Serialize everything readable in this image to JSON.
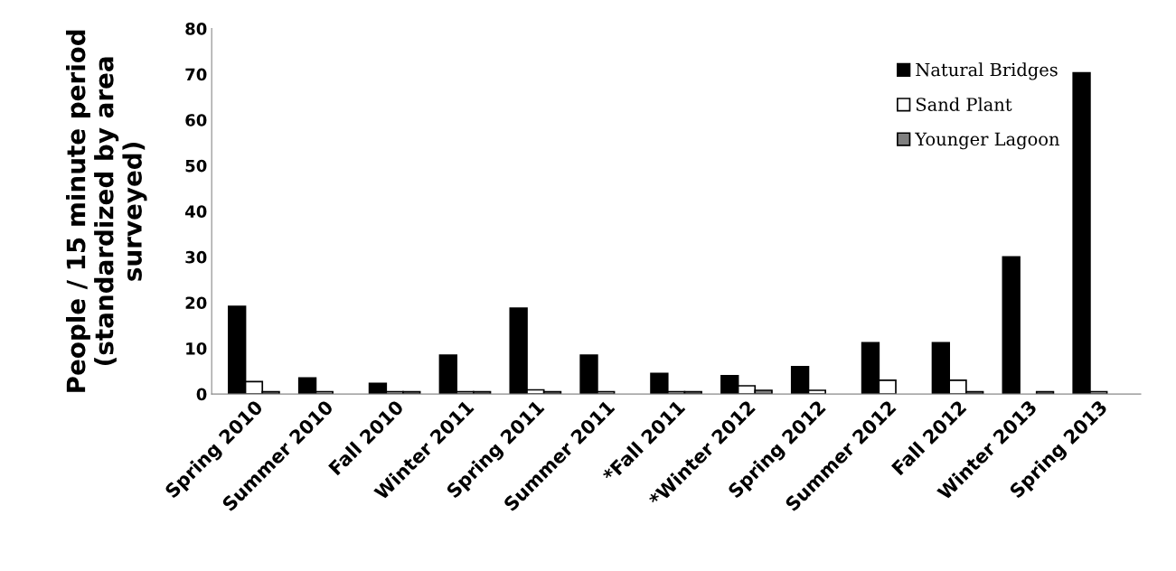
{
  "chart_data": {
    "type": "bar",
    "ylabel": "People / 15 minute period\n(standardized by area\nsurveyed)",
    "categories": [
      "Spring 2010",
      "Summer 2010",
      "Fall 2010",
      "Winter 2011",
      "Spring 2011",
      "Summer 2011",
      "*Fall 2011",
      "*Winter 2012",
      "Spring 2012",
      "Summer 2012",
      "Fall 2012",
      "Winter 2013",
      "Spring 2013"
    ],
    "series": [
      {
        "name": "Natural Bridges",
        "color": "#000000",
        "values": [
          19.2,
          3.5,
          2.3,
          8.5,
          18.8,
          8.5,
          4.5,
          4,
          6,
          11.2,
          11.2,
          30,
          70.3
        ]
      },
      {
        "name": "Sand Plant",
        "color": "#ffffff",
        "values": [
          2.7,
          0.5,
          0.5,
          0.5,
          0.9,
          0.5,
          0.5,
          1.8,
          0.8,
          3,
          3,
          null,
          0.5
        ]
      },
      {
        "name": "Younger Lagoon",
        "color": "#808080",
        "values": [
          0.5,
          null,
          0.5,
          0.5,
          0.5,
          null,
          0.5,
          0.8,
          null,
          null,
          0.5,
          0.5,
          null
        ]
      }
    ],
    "ylim": [
      0,
      80
    ],
    "yticks": [
      0,
      10,
      20,
      30,
      40,
      50,
      60,
      70,
      80
    ],
    "grid": false,
    "legend": "top right"
  }
}
